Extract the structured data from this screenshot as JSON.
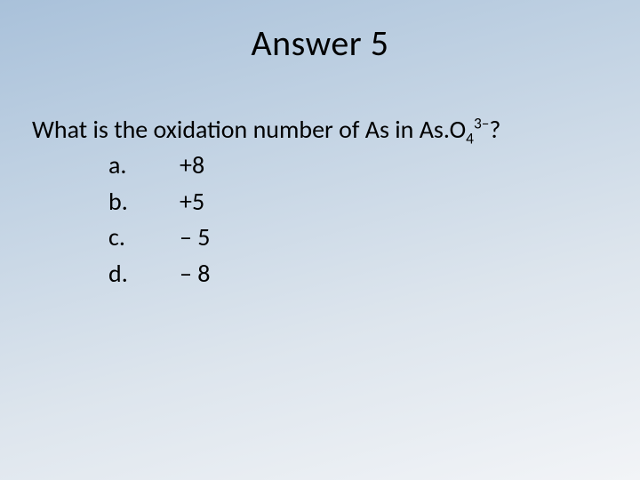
{
  "title": "Answer 5",
  "question_prefix": "What is the oxidation number of As in As.O",
  "question_sub": "4",
  "question_sup": "3–",
  "question_suffix": "?",
  "options": [
    {
      "label": "a.",
      "value": "+8"
    },
    {
      "label": "b.",
      "value": "+5"
    },
    {
      "label": "c.",
      "value": "– 5"
    },
    {
      "label": "d.",
      "value": "– 8"
    }
  ],
  "colors": {
    "bg_top": "#a9c1da",
    "bg_bottom": "#f2f4f7",
    "text": "#000000"
  },
  "typography": {
    "title_fontsize": 40,
    "body_fontsize": 28,
    "font_family": "Calibri"
  }
}
